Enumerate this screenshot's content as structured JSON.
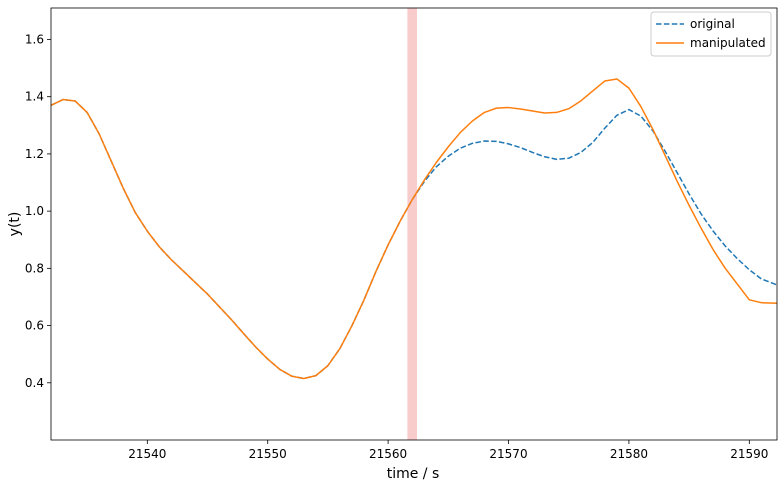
{
  "chart_data": {
    "type": "line",
    "xlabel": "time / s",
    "ylabel": "y(t)",
    "xlim": [
      21532,
      21592.3
    ],
    "ylim": [
      0.2,
      1.71
    ],
    "x_ticks": [
      21540,
      21550,
      21560,
      21570,
      21580,
      21590
    ],
    "y_ticks": [
      0.4,
      0.6,
      0.8,
      1.0,
      1.2,
      1.4,
      1.6
    ],
    "y_tick_labels": [
      "0.4",
      "0.6",
      "0.8",
      "1.0",
      "1.2",
      "1.4",
      "1.6"
    ],
    "grid": false,
    "legend_position": "top-right",
    "highlight_span": {
      "x0": 21561.6,
      "x1": 21562.4,
      "color": "#f9cccc"
    },
    "series": [
      {
        "name": "original",
        "color": "#1f77b4",
        "style": "dashed",
        "x": [
          21532,
          21533,
          21534,
          21535,
          21536,
          21537,
          21538,
          21539,
          21540,
          21541,
          21542,
          21543,
          21544,
          21545,
          21546,
          21547,
          21548,
          21549,
          21550,
          21551,
          21552,
          21553,
          21554,
          21555,
          21556,
          21557,
          21558,
          21559,
          21560,
          21561,
          21562,
          21563,
          21564,
          21565,
          21566,
          21567,
          21568,
          21569,
          21570,
          21571,
          21572,
          21573,
          21574,
          21575,
          21576,
          21577,
          21578,
          21579,
          21580,
          21581,
          21582,
          21583,
          21584,
          21585,
          21586,
          21587,
          21588,
          21589,
          21590,
          21591,
          21592.3
        ],
        "y": [
          1.37,
          1.39,
          1.385,
          1.345,
          1.27,
          1.175,
          1.08,
          0.995,
          0.93,
          0.875,
          0.83,
          0.79,
          0.75,
          0.71,
          0.665,
          0.62,
          0.572,
          0.525,
          0.483,
          0.447,
          0.423,
          0.415,
          0.425,
          0.46,
          0.52,
          0.6,
          0.69,
          0.79,
          0.882,
          0.965,
          1.04,
          1.103,
          1.155,
          1.192,
          1.22,
          1.237,
          1.245,
          1.244,
          1.235,
          1.222,
          1.205,
          1.19,
          1.181,
          1.185,
          1.205,
          1.24,
          1.29,
          1.335,
          1.355,
          1.332,
          1.28,
          1.21,
          1.135,
          1.06,
          0.99,
          0.93,
          0.878,
          0.834,
          0.795,
          0.763,
          0.742
        ]
      },
      {
        "name": "manipulated",
        "color": "#ff7f0e",
        "style": "solid",
        "x": [
          21532,
          21533,
          21534,
          21535,
          21536,
          21537,
          21538,
          21539,
          21540,
          21541,
          21542,
          21543,
          21544,
          21545,
          21546,
          21547,
          21548,
          21549,
          21550,
          21551,
          21552,
          21553,
          21554,
          21555,
          21556,
          21557,
          21558,
          21559,
          21560,
          21561,
          21562,
          21563,
          21564,
          21565,
          21566,
          21567,
          21568,
          21569,
          21570,
          21571,
          21572,
          21573,
          21574,
          21575,
          21576,
          21577,
          21578,
          21579,
          21580,
          21581,
          21582,
          21583,
          21584,
          21585,
          21586,
          21587,
          21588,
          21589,
          21590,
          21591,
          21592.3
        ],
        "y": [
          1.37,
          1.39,
          1.385,
          1.345,
          1.27,
          1.175,
          1.08,
          0.995,
          0.93,
          0.875,
          0.83,
          0.79,
          0.75,
          0.71,
          0.665,
          0.62,
          0.572,
          0.525,
          0.483,
          0.447,
          0.423,
          0.415,
          0.425,
          0.46,
          0.52,
          0.6,
          0.69,
          0.79,
          0.882,
          0.965,
          1.04,
          1.108,
          1.17,
          1.225,
          1.275,
          1.315,
          1.345,
          1.36,
          1.362,
          1.357,
          1.35,
          1.343,
          1.345,
          1.358,
          1.385,
          1.42,
          1.455,
          1.462,
          1.43,
          1.365,
          1.285,
          1.195,
          1.105,
          1.02,
          0.94,
          0.865,
          0.8,
          0.745,
          0.69,
          0.68,
          0.678
        ]
      }
    ]
  }
}
